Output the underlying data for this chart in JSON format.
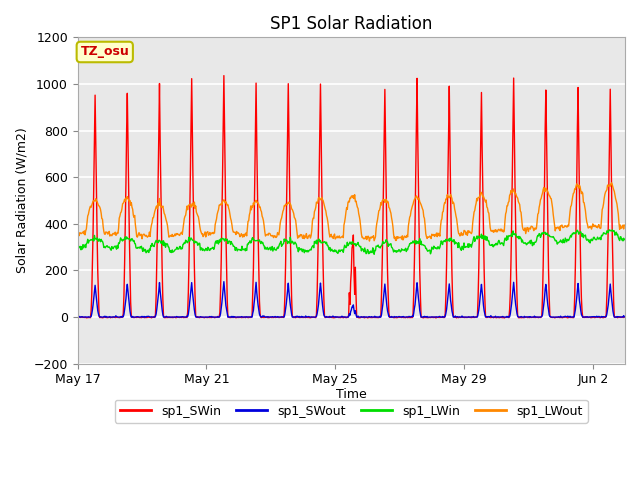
{
  "title": "SP1 Solar Radiation",
  "ylabel": "Solar Radiation (W/m2)",
  "xlabel": "Time",
  "ylim": [
    -200,
    1200
  ],
  "yticks": [
    -200,
    0,
    200,
    400,
    600,
    800,
    1000,
    1200
  ],
  "background_color": "#ffffff",
  "plot_bg_color": "#e8e8e8",
  "grid_color": "#ffffff",
  "colors": {
    "SWin": "#ff0000",
    "SWout": "#0000dd",
    "LWin": "#00dd00",
    "LWout": "#ff8800"
  },
  "legend_labels": [
    "sp1_SWin",
    "sp1_SWout",
    "sp1_LWin",
    "sp1_LWout"
  ],
  "tz_label": "TZ_osu",
  "n_days": 17,
  "xtick_labels": [
    "May 17",
    "May 21",
    "May 25",
    "May 29",
    "Jun 2"
  ],
  "xtick_positions": [
    0,
    4,
    8,
    12,
    16
  ]
}
